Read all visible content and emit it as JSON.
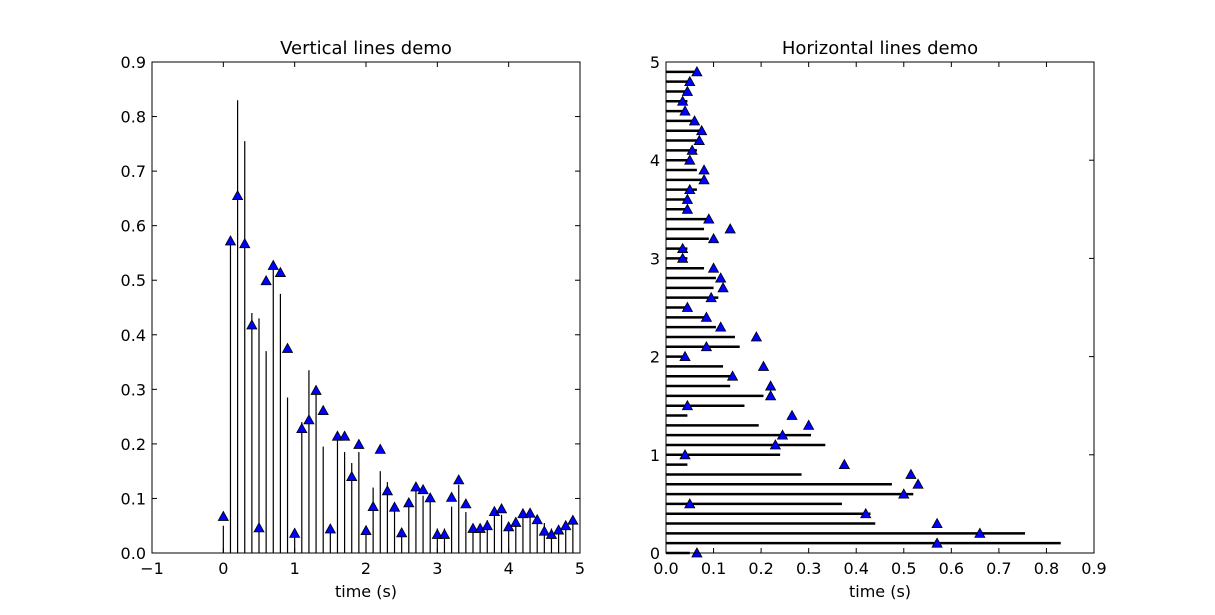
{
  "chart_data": [
    {
      "type": "vlines",
      "title": "Vertical lines demo",
      "xlabel": "time (s)",
      "ylabel": "",
      "xlim": [
        -1,
        5
      ],
      "ylim": [
        0,
        0.9
      ],
      "xticks": [
        "−1",
        "0",
        "1",
        "2",
        "3",
        "4",
        "5"
      ],
      "yticks": [
        "0.0",
        "0.1",
        "0.2",
        "0.3",
        "0.4",
        "0.5",
        "0.6",
        "0.7",
        "0.8",
        "0.9"
      ],
      "x": [
        0.0,
        0.1,
        0.2,
        0.3,
        0.4,
        0.5,
        0.6,
        0.7,
        0.8,
        0.9,
        1.0,
        1.1,
        1.2,
        1.3,
        1.4,
        1.5,
        1.6,
        1.7,
        1.8,
        1.9,
        2.0,
        2.1,
        2.2,
        2.3,
        2.4,
        2.5,
        2.6,
        2.7,
        2.8,
        2.9,
        3.0,
        3.1,
        3.2,
        3.3,
        3.4,
        3.5,
        3.6,
        3.7,
        3.8,
        3.9,
        4.0,
        4.1,
        4.2,
        4.3,
        4.4,
        4.5,
        4.6,
        4.7,
        4.8,
        4.9
      ],
      "lines": [
        0.05,
        0.58,
        0.83,
        0.755,
        0.44,
        0.43,
        0.37,
        0.52,
        0.475,
        0.285,
        0.045,
        0.24,
        0.335,
        0.29,
        0.195,
        0.045,
        0.215,
        0.185,
        0.165,
        0.185,
        0.045,
        0.12,
        0.15,
        0.13,
        0.085,
        0.045,
        0.085,
        0.115,
        0.105,
        0.1,
        0.045,
        0.045,
        0.085,
        0.125,
        0.075,
        0.045,
        0.045,
        0.06,
        0.075,
        0.07,
        0.055,
        0.065,
        0.07,
        0.07,
        0.065,
        0.055,
        0.045,
        0.05,
        0.055,
        0.06
      ],
      "markers": [
        0.067,
        0.572,
        0.655,
        0.567,
        0.418,
        0.046,
        0.499,
        0.527,
        0.514,
        0.375,
        0.036,
        0.228,
        0.244,
        0.298,
        0.261,
        0.044,
        0.214,
        0.214,
        0.14,
        0.199,
        0.041,
        0.085,
        0.19,
        0.114,
        0.084,
        0.037,
        0.092,
        0.121,
        0.116,
        0.101,
        0.034,
        0.034,
        0.102,
        0.134,
        0.09,
        0.045,
        0.045,
        0.05,
        0.076,
        0.081,
        0.048,
        0.056,
        0.072,
        0.073,
        0.061,
        0.04,
        0.034,
        0.042,
        0.05,
        0.06
      ],
      "marker_color": "#0000ff"
    },
    {
      "type": "hlines",
      "title": "Horizontal lines demo",
      "xlabel": "time (s)",
      "ylabel": "",
      "xlim": [
        0,
        0.9
      ],
      "ylim": [
        0,
        5
      ],
      "xticks": [
        "0.0",
        "0.1",
        "0.2",
        "0.3",
        "0.4",
        "0.5",
        "0.6",
        "0.7",
        "0.8",
        "0.9"
      ],
      "yticks": [
        "0",
        "1",
        "2",
        "3",
        "4",
        "5"
      ],
      "y": [
        0.0,
        0.1,
        0.2,
        0.3,
        0.4,
        0.5,
        0.6,
        0.7,
        0.8,
        0.9,
        1.0,
        1.1,
        1.2,
        1.3,
        1.4,
        1.5,
        1.6,
        1.7,
        1.8,
        1.9,
        2.0,
        2.1,
        2.2,
        2.3,
        2.4,
        2.5,
        2.6,
        2.7,
        2.8,
        2.9,
        3.0,
        3.1,
        3.2,
        3.3,
        3.4,
        3.5,
        3.6,
        3.7,
        3.8,
        3.9,
        4.0,
        4.1,
        4.2,
        4.3,
        4.4,
        4.5,
        4.6,
        4.7,
        4.8,
        4.9
      ],
      "lines": [
        0.05,
        0.83,
        0.755,
        0.44,
        0.43,
        0.37,
        0.52,
        0.475,
        0.285,
        0.045,
        0.24,
        0.335,
        0.305,
        0.195,
        0.045,
        0.165,
        0.205,
        0.135,
        0.135,
        0.12,
        0.045,
        0.155,
        0.145,
        0.105,
        0.085,
        0.045,
        0.11,
        0.1,
        0.105,
        0.08,
        0.045,
        0.045,
        0.09,
        0.08,
        0.09,
        0.045,
        0.045,
        0.065,
        0.075,
        0.065,
        0.045,
        0.065,
        0.07,
        0.07,
        0.065,
        0.045,
        0.045,
        0.05,
        0.055,
        0.06
      ],
      "markers": [
        0.065,
        0.57,
        0.66,
        0.57,
        0.42,
        0.05,
        0.5,
        0.53,
        0.515,
        0.375,
        0.04,
        0.23,
        0.245,
        0.3,
        0.265,
        0.045,
        0.22,
        0.22,
        0.14,
        0.205,
        0.04,
        0.085,
        0.19,
        0.115,
        0.085,
        0.045,
        0.095,
        0.12,
        0.115,
        0.1,
        0.035,
        0.035,
        0.1,
        0.135,
        0.09,
        0.045,
        0.045,
        0.05,
        0.08,
        0.08,
        0.05,
        0.055,
        0.07,
        0.075,
        0.06,
        0.04,
        0.035,
        0.045,
        0.05,
        0.065
      ],
      "marker_color": "#0000ff"
    }
  ]
}
